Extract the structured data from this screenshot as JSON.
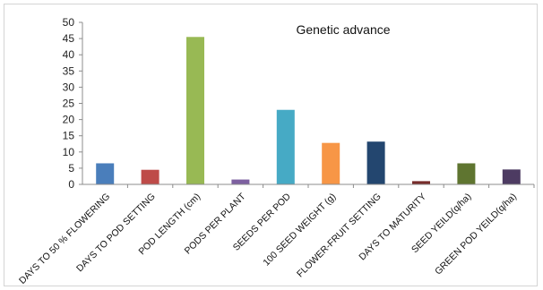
{
  "chart_data": {
    "type": "bar",
    "title": "Genetic advance",
    "xlabel": "",
    "ylabel": "",
    "ylim": [
      0,
      50
    ],
    "yticks": [
      0,
      5,
      10,
      15,
      20,
      25,
      30,
      35,
      40,
      45,
      50
    ],
    "grid": false,
    "categories": [
      "DAYS TO 50 % FLOWERING",
      "DAYS TO POD SETTING",
      "POD LENGTH (cm)",
      "PODS PER PLANT",
      "SEEDS PER POD",
      "100 SEED WEIGHT (g)",
      "FLOWER-FRUIT SETTING",
      "DAYS TO MATURITY",
      "SEED YEILD(q/ha)",
      "GREEN POD YEILD(q/ha)"
    ],
    "values": [
      6.5,
      4.5,
      45.5,
      1.5,
      23,
      12.8,
      13.2,
      1.0,
      6.5,
      4.6
    ],
    "colors": [
      "#4a7ebb",
      "#be4b48",
      "#98b954",
      "#7d60a0",
      "#46aac5",
      "#f79646",
      "#23466f",
      "#772c2a",
      "#5f7530",
      "#4d3b62"
    ]
  }
}
